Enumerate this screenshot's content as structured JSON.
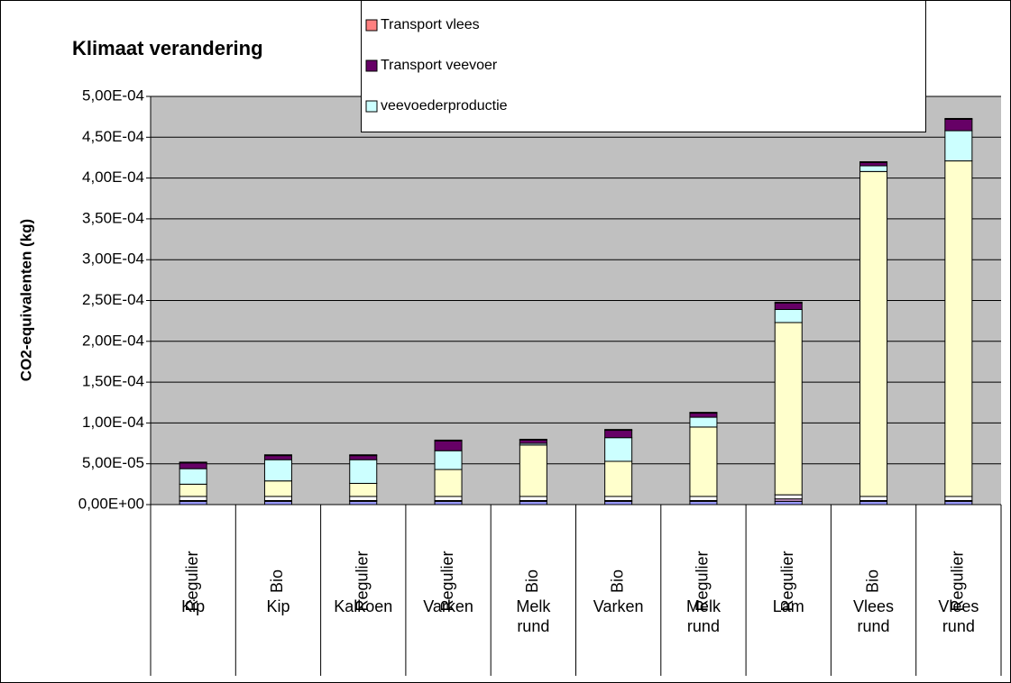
{
  "chart_data": {
    "type": "stacked_bar",
    "title": "Klimaat verandering",
    "y_label": "CO2-equivalenten (kg)",
    "categories": [
      "Regulier",
      "Bio",
      "Regulier",
      "Regulier",
      "Bio",
      "Bio",
      "Regulier",
      "Regulier",
      "Bio",
      "Regulier"
    ],
    "groups": [
      "Kip",
      "Kip",
      "Kalkoen",
      "Varken",
      "Melk rund",
      "Varken",
      "Melk rund",
      "Lam",
      "Vlees rund",
      "Vlees rund"
    ],
    "series": [
      {
        "color": "#9999FF",
        "values": [
          4e-06,
          4e-06,
          4e-06,
          4e-06,
          4e-06,
          4e-06,
          4e-06,
          4e-06,
          4e-06,
          4e-06
        ]
      },
      {
        "color": "#CC99CC",
        "values": [
          1e-06,
          1e-06,
          1e-06,
          1e-06,
          1e-06,
          1e-06,
          1e-06,
          3e-06,
          1e-06,
          1e-06
        ]
      },
      {
        "color": "#FFFFFF",
        "values": [
          5e-06,
          5e-06,
          5e-06,
          5e-06,
          5e-06,
          5e-06,
          5e-06,
          5e-06,
          5e-06,
          5e-06
        ]
      },
      {
        "color": "#FFFFCC",
        "values": [
          1.5e-05,
          1.9e-05,
          1.6e-05,
          3.3e-05,
          6.3e-05,
          4.3e-05,
          8.5e-05,
          0.000211,
          0.000398,
          0.000411
        ]
      },
      {
        "name": "veevoederproductie",
        "color": "#CCFFFF",
        "values": [
          1.9e-05,
          2.6e-05,
          2.9e-05,
          2.3e-05,
          2e-06,
          2.9e-05,
          1.2e-05,
          1.6e-05,
          7e-06,
          3.7e-05
        ]
      },
      {
        "name": "Transport veevoer",
        "color": "#660066",
        "values": [
          7e-06,
          5e-06,
          5e-06,
          1.2e-05,
          4e-06,
          9e-06,
          5e-06,
          8e-06,
          4e-06,
          1.4e-05
        ]
      },
      {
        "name": "Transport vlees",
        "color": "#FF8080",
        "values": [
          1e-06,
          1e-06,
          1e-06,
          1e-06,
          1e-06,
          1e-06,
          1e-06,
          1e-06,
          1e-06,
          1e-06
        ]
      }
    ],
    "ylim": [
      0,
      0.0005
    ],
    "yticks": [
      {
        "value": 0,
        "label": "0,00E+00"
      },
      {
        "value": 5e-05,
        "label": "5,00E-05"
      },
      {
        "value": 0.0001,
        "label": "1,00E-04"
      },
      {
        "value": 0.00015,
        "label": "1,50E-04"
      },
      {
        "value": 0.0002,
        "label": "2,00E-04"
      },
      {
        "value": 0.00025,
        "label": "2,50E-04"
      },
      {
        "value": 0.0003,
        "label": "3,00E-04"
      },
      {
        "value": 0.00035,
        "label": "3,50E-04"
      },
      {
        "value": 0.0004,
        "label": "4,00E-04"
      },
      {
        "value": 0.00045,
        "label": "4,50E-04"
      },
      {
        "value": 0.0005,
        "label": "5,00E-04"
      }
    ],
    "grid": true,
    "legend": "top"
  }
}
